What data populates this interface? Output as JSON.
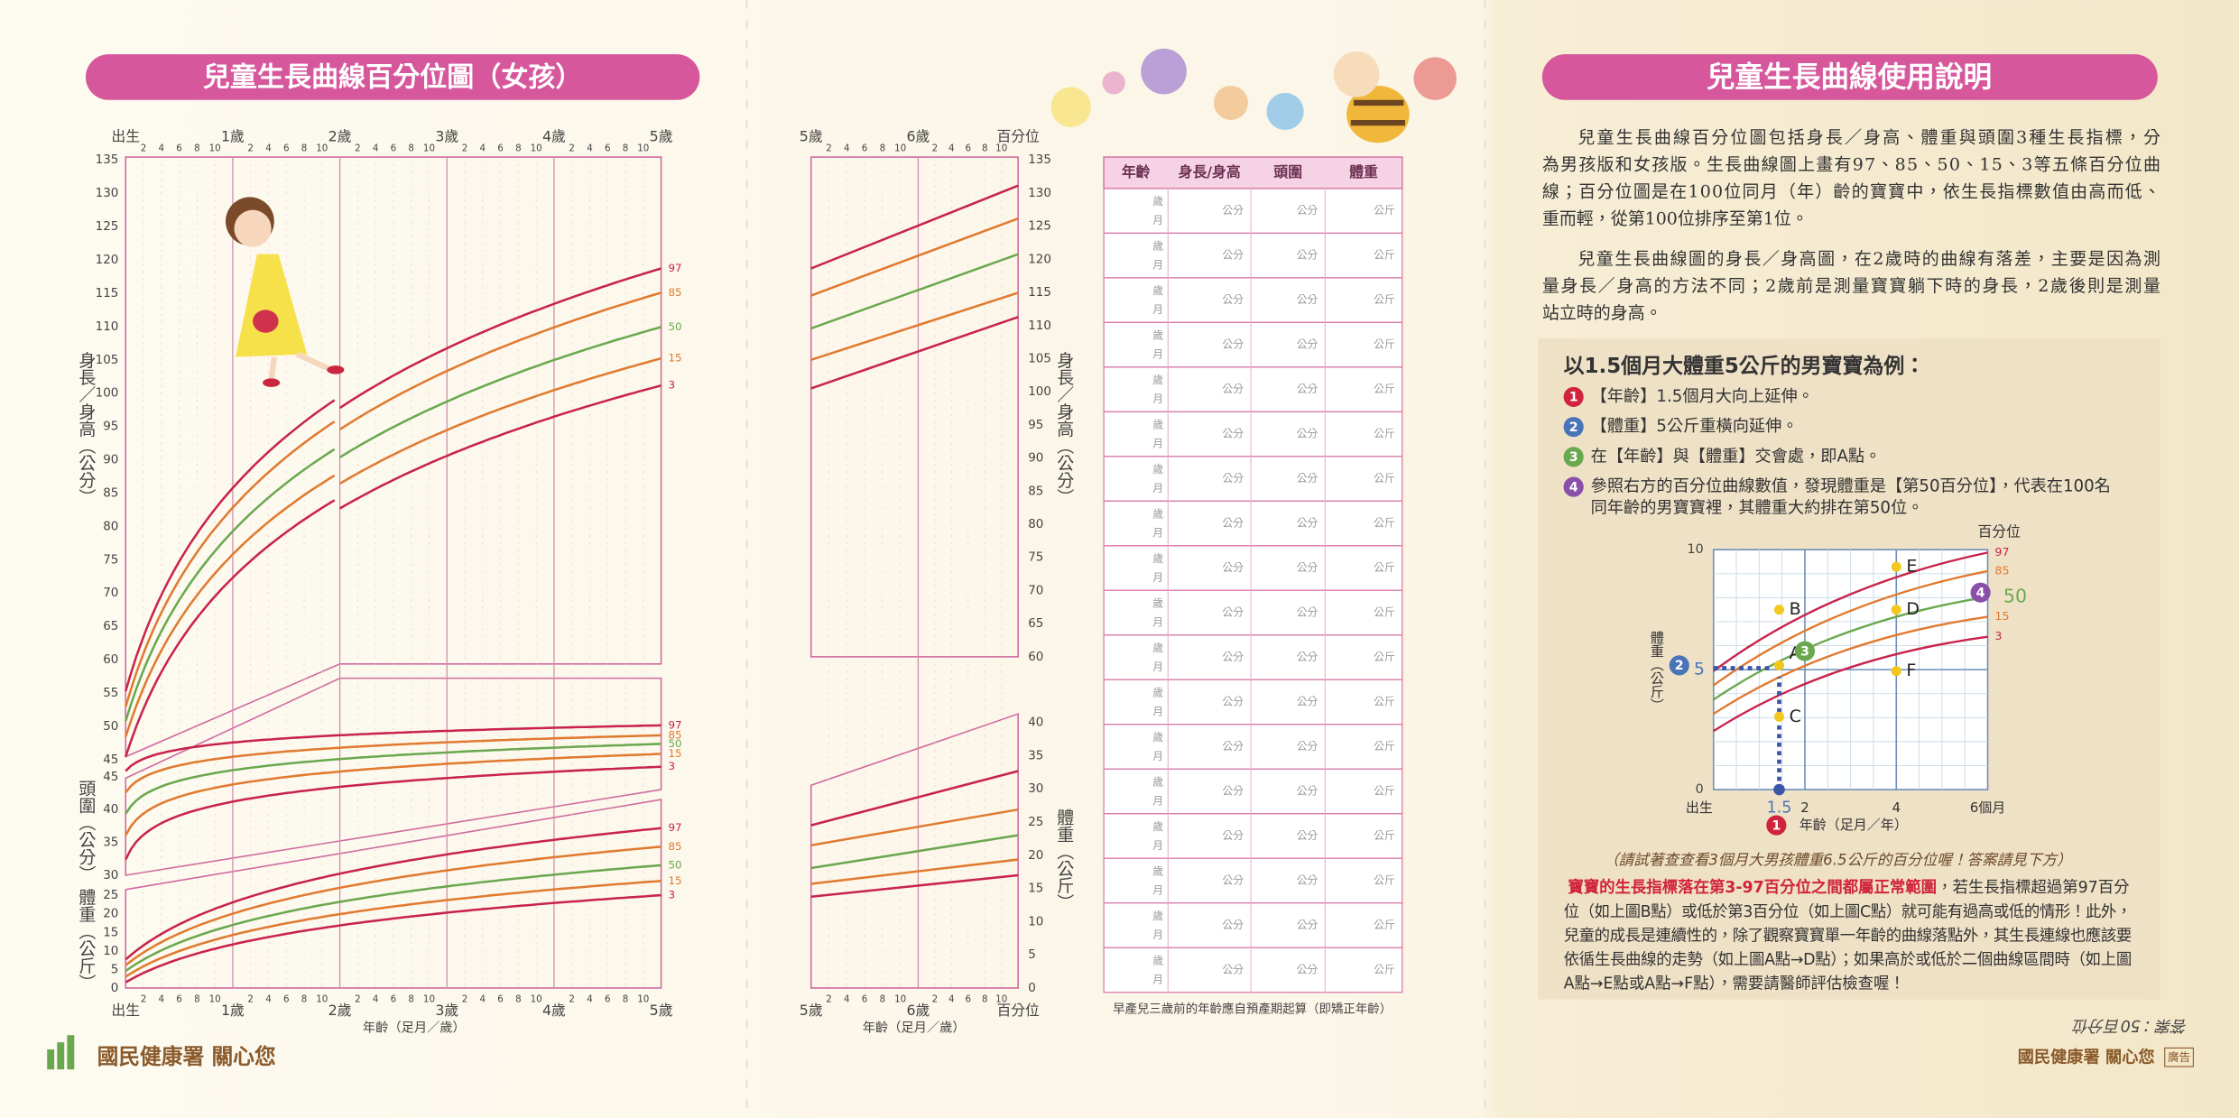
{
  "left_chart": {
    "title": "兒童生長曲線百分位圖（女孩）",
    "age_labels": [
      "出生",
      "1歲",
      "2歲",
      "3歲",
      "4歲",
      "5歲"
    ],
    "month_ticks": [
      2,
      4,
      6,
      8,
      10
    ],
    "height_ticks": [
      135,
      130,
      125,
      120,
      115,
      110,
      105,
      100,
      95,
      90,
      85,
      80,
      75,
      70,
      65,
      60,
      55,
      50,
      45
    ],
    "head_ticks": [
      45,
      40,
      35,
      30
    ],
    "weight_ticks": [
      25,
      20,
      15,
      10,
      5,
      0
    ],
    "height_label": "身長／身高（公分）",
    "head_label": "頭圍（公分）",
    "weight_label": "體重（公斤）",
    "percentiles": [
      97,
      85,
      50,
      15,
      3
    ],
    "x_label": "年齡（足月／歲）"
  },
  "mid_chart": {
    "age_labels": [
      "5歲",
      "6歲",
      "百分位"
    ],
    "month_ticks": [
      2,
      4,
      6,
      8,
      10
    ],
    "height_ticks": [
      135,
      130,
      125,
      120,
      115,
      110,
      105,
      100,
      95,
      90,
      85,
      80,
      75,
      70,
      65,
      60
    ],
    "weight_ticks": [
      40,
      35,
      30,
      25,
      20,
      15,
      10,
      5,
      0
    ],
    "height_label": "身長／身高（公分）",
    "weight_label": "體重（公斤）",
    "x_label": "年齡（足月／歲）"
  },
  "table": {
    "headers": [
      "年齡",
      "身長/身高",
      "頭圍",
      "體重"
    ],
    "rows": [
      [
        "歲",
        "月",
        "公分",
        "公分",
        "公斤"
      ],
      [
        "歲",
        "月",
        "公分",
        "公分",
        "公斤"
      ],
      [
        "歲",
        "月",
        "公分",
        "公分",
        "公斤"
      ],
      [
        "歲",
        "月",
        "公分",
        "公分",
        "公斤"
      ],
      [
        "歲",
        "月",
        "公分",
        "公分",
        "公斤"
      ],
      [
        "歲",
        "月",
        "公分",
        "公分",
        "公斤"
      ],
      [
        "歲",
        "月",
        "公分",
        "公分",
        "公斤"
      ],
      [
        "歲",
        "月",
        "公分",
        "公分",
        "公斤"
      ],
      [
        "歲",
        "月",
        "公分",
        "公分",
        "公斤"
      ],
      [
        "歲",
        "月",
        "公分",
        "公分",
        "公斤"
      ],
      [
        "歲",
        "月",
        "公分",
        "公分",
        "公斤"
      ],
      [
        "歲",
        "月",
        "公分",
        "公分",
        "公斤"
      ],
      [
        "歲",
        "月",
        "公分",
        "公分",
        "公斤"
      ],
      [
        "歲",
        "月",
        "公分",
        "公分",
        "公斤"
      ],
      [
        "歲",
        "月",
        "公分",
        "公分",
        "公斤"
      ],
      [
        "歲",
        "月",
        "公分",
        "公分",
        "公斤"
      ],
      [
        "歲",
        "月",
        "公分",
        "公分",
        "公斤"
      ],
      [
        "歲",
        "月",
        "公分",
        "公分",
        "公斤"
      ]
    ],
    "note": "早產兒三歲前的年齡應自預產期起算（即矯正年齡）"
  },
  "logo": "國民健康署 關心您",
  "guide": {
    "title": "兒童生長曲線使用說明",
    "paragraph1": [
      "兒童生長曲線百分位圖包括身長／身高、體重與頭圍3種生長指標，分",
      "為男孩版和女孩版。生長曲線圖上畫有97、85、50、15、3等五條百分位曲",
      "線；百分位圖是在100位同月（年）齡的寶寶中，依生長指標數值由高而低、",
      "重而輕，從第100位排序至第1位。"
    ],
    "paragraph2": [
      "兒童生長曲線圖的身長／身高圖，在2歲時的曲線有落差，主要是因為測",
      "量身長／身高的方法不同；2歲前是測量寶寶躺下時的身長，2歲後則是測量",
      "站立時的身高。"
    ],
    "example": {
      "heading": "以1.5個月大體重5公斤的男寶寶為例：",
      "steps": [
        {
          "num": "1",
          "lines": [
            "【年齡】1.5個月大向上延伸。"
          ]
        },
        {
          "num": "2",
          "lines": [
            "【體重】5公斤重橫向延伸。"
          ]
        },
        {
          "num": "3",
          "lines": [
            "在【年齡】與【體重】交會處，即A點。"
          ]
        },
        {
          "num": "4",
          "lines": [
            "參照右方的百分位曲線數值，發現體重是【第50百分位】，代表在100名",
            "同年齡的男寶寶裡，其體重大約排在第50位。"
          ]
        }
      ],
      "chart": {
        "percentile_title": "百分位",
        "y_ticks": [
          "10",
          "0"
        ],
        "y_value": "5",
        "y_label": "體重（公斤）",
        "x_ticks": [
          "出生",
          "1.5",
          "2",
          "4",
          "6個月"
        ],
        "x_label": "年齡（足月／年）",
        "percentiles": [
          "97",
          "85",
          "50",
          "15",
          "3"
        ],
        "points": [
          "A",
          "B",
          "C",
          "D",
          "E",
          "F"
        ]
      },
      "caption": "（請試著查查看3個月大男孩體重6.5公斤的百分位喔！答案請見下方）",
      "highlight": "寶寶的生長指標落在第3-97百分位之間都屬正常範圍",
      "lines": [
        "，若生長指標超過第97百分",
        "位（如上圖B點）或低於第3百分位（如上圖C點）就可能有過高或低的情形！此外，",
        "兒童的成長是連續性的，除了觀察寶寶單一年齡的曲線落點外，其生長連線也應該要",
        "依循生長曲線的走勢（如上圖A點→D點）；如果高於或低於二個曲線區間時（如上圖",
        "A點→E點或A點→F點），需要請醫師評估檢查喔！"
      ]
    },
    "answer": "答案：50百分位",
    "footer": "國民健康署 關心您",
    "ad": "廣告"
  }
}
